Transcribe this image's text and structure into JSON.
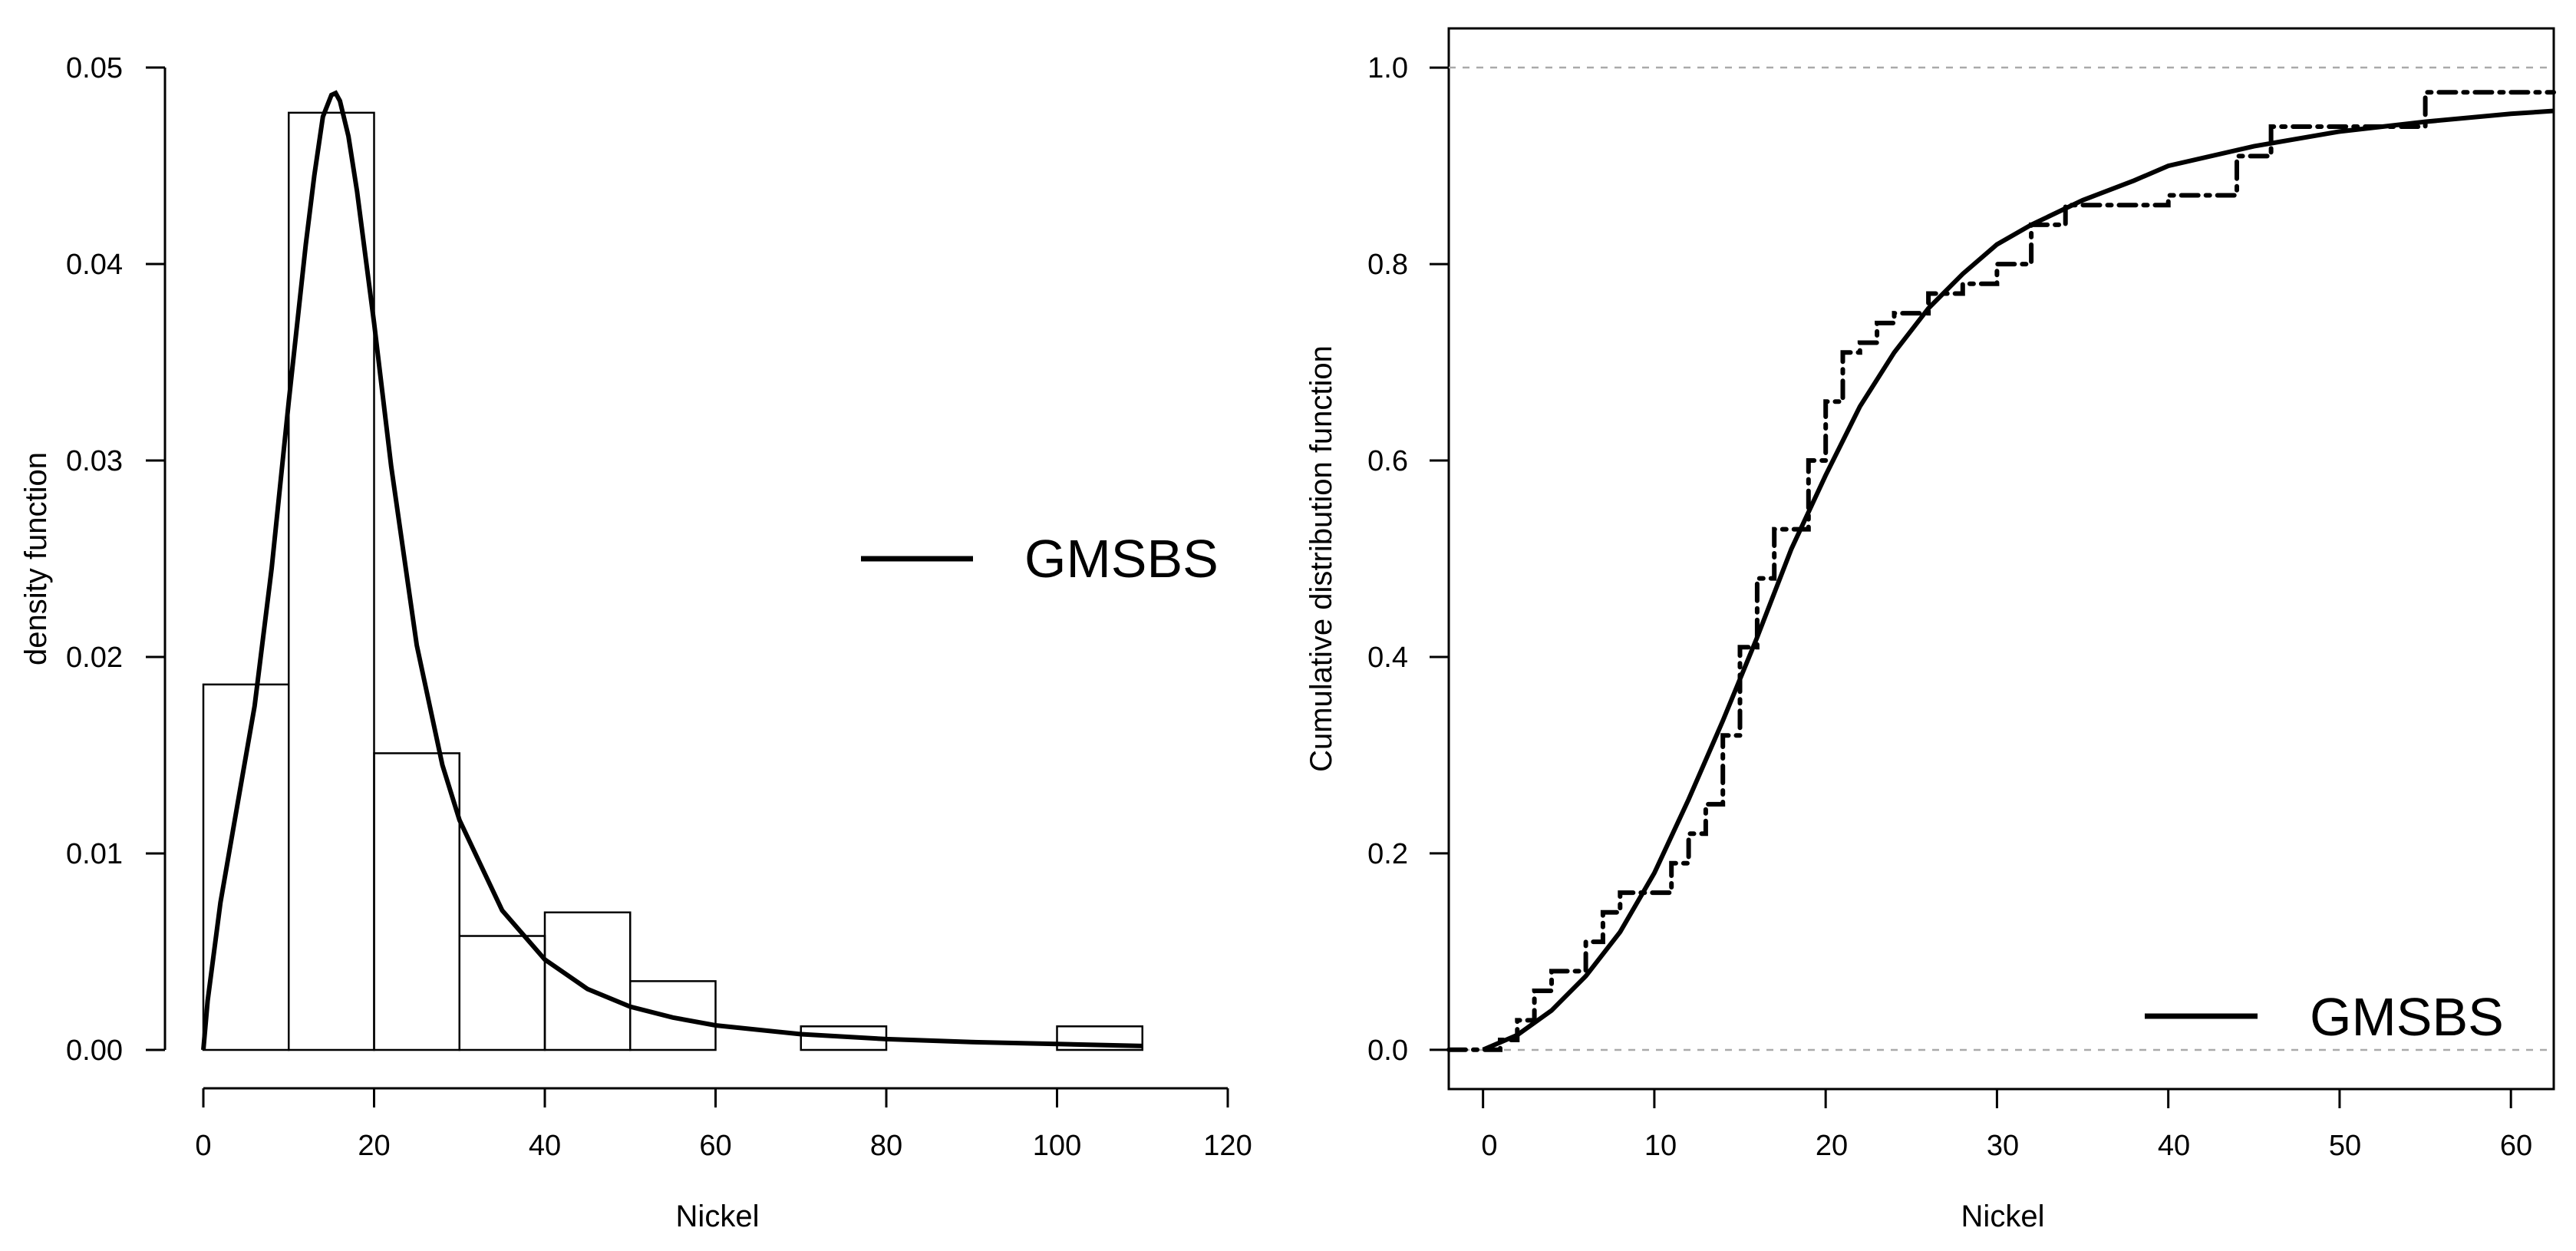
{
  "chart_data": [
    {
      "type": "histogram",
      "xlabel": "Nickel",
      "ylabel": "density function",
      "xlim": [
        0,
        120
      ],
      "ylim": [
        0,
        0.05
      ],
      "xticks": [
        "0",
        "20",
        "40",
        "60",
        "80",
        "100",
        "120"
      ],
      "yticks": [
        "0.00",
        "0.01",
        "0.02",
        "0.03",
        "0.04",
        "0.05"
      ],
      "bins": [
        {
          "from": 0,
          "to": 10,
          "density": 0.0186
        },
        {
          "from": 10,
          "to": 20,
          "density": 0.0477
        },
        {
          "from": 20,
          "to": 30,
          "density": 0.0151
        },
        {
          "from": 30,
          "to": 40,
          "density": 0.0058
        },
        {
          "from": 40,
          "to": 50,
          "density": 0.007
        },
        {
          "from": 50,
          "to": 60,
          "density": 0.0035
        },
        {
          "from": 60,
          "to": 70,
          "density": 0.0
        },
        {
          "from": 70,
          "to": 80,
          "density": 0.0012
        },
        {
          "from": 80,
          "to": 90,
          "density": 0.0
        },
        {
          "from": 90,
          "to": 100,
          "density": 0.0
        },
        {
          "from": 100,
          "to": 110,
          "density": 0.0012
        }
      ],
      "fitted_curve": {
        "name": "GMSBS",
        "x": [
          0,
          0.5,
          2,
          4,
          6,
          8,
          10,
          12,
          13,
          14,
          15,
          15.5,
          16,
          17,
          18,
          20,
          22,
          25,
          28,
          30,
          35,
          40,
          45,
          50,
          55,
          60,
          70,
          80,
          90,
          100,
          110
        ],
        "y": [
          0,
          0.0025,
          0.0075,
          0.0125,
          0.0175,
          0.0245,
          0.033,
          0.041,
          0.0445,
          0.0475,
          0.0486,
          0.0487,
          0.0483,
          0.0465,
          0.0437,
          0.037,
          0.0297,
          0.0206,
          0.0145,
          0.0117,
          0.0071,
          0.0046,
          0.0031,
          0.0022,
          0.00165,
          0.00125,
          0.0008,
          0.00055,
          0.0004,
          0.0003,
          0.0002
        ]
      },
      "legend": {
        "label": "GMSBS",
        "position": "right"
      }
    },
    {
      "type": "line",
      "xlabel": "Nickel",
      "ylabel": "Cumulative distribution function",
      "xlim": [
        -2,
        62.5
      ],
      "ylim": [
        -0.04,
        1.04
      ],
      "xticks": [
        "0",
        "10",
        "20",
        "30",
        "40",
        "50",
        "60"
      ],
      "yticks": [
        "0.0",
        "0.2",
        "0.4",
        "0.6",
        "0.8",
        "1.0"
      ],
      "reference_lines": [
        0,
        1
      ],
      "empirical_cdf": {
        "x": [
          -2,
          0,
          1,
          2,
          3,
          4,
          5,
          6,
          7,
          8,
          9,
          10,
          11,
          12,
          13,
          14,
          15,
          16,
          17,
          18,
          19,
          20,
          21,
          22,
          23,
          24,
          26,
          28,
          30,
          32,
          34,
          36,
          38,
          40,
          42,
          44,
          46,
          48,
          50,
          52,
          54,
          55,
          60,
          62.5
        ],
        "y": [
          0,
          0.0,
          0.01,
          0.03,
          0.06,
          0.08,
          0.08,
          0.11,
          0.14,
          0.16,
          0.16,
          0.16,
          0.19,
          0.22,
          0.25,
          0.32,
          0.41,
          0.48,
          0.53,
          0.53,
          0.6,
          0.66,
          0.71,
          0.72,
          0.74,
          0.75,
          0.77,
          0.78,
          0.8,
          0.84,
          0.86,
          0.86,
          0.86,
          0.87,
          0.87,
          0.91,
          0.94,
          0.94,
          0.94,
          0.94,
          0.94,
          0.975,
          0.975,
          0.975
        ]
      },
      "fitted_curve": {
        "name": "GMSBS",
        "x": [
          0,
          2,
          4,
          6,
          8,
          10,
          12,
          14,
          16,
          18,
          20,
          22,
          24,
          26,
          28,
          30,
          32,
          35,
          38,
          40,
          45,
          50,
          55,
          60,
          62.5
        ],
        "y": [
          0.0,
          0.015,
          0.04,
          0.075,
          0.12,
          0.18,
          0.255,
          0.335,
          0.42,
          0.51,
          0.585,
          0.655,
          0.71,
          0.755,
          0.79,
          0.82,
          0.84,
          0.865,
          0.885,
          0.9,
          0.92,
          0.935,
          0.945,
          0.953,
          0.956
        ]
      },
      "legend": {
        "label": "GMSBS",
        "position": "bottom-right"
      }
    }
  ]
}
